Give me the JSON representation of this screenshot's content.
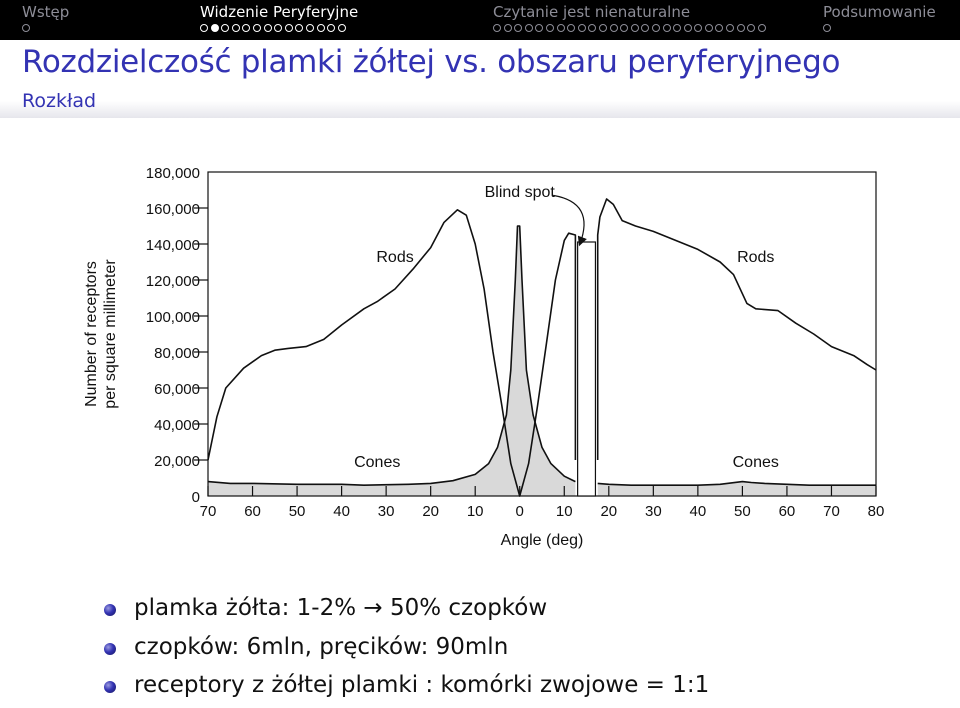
{
  "nav": {
    "sections": [
      {
        "label": "Wstęp",
        "dots": 1,
        "current": -1,
        "active": false
      },
      {
        "label": "Widzenie Peryferyjne",
        "dots": 14,
        "current": 1,
        "active": true
      },
      {
        "label": "Czytanie jest nienaturalne",
        "dots": 26,
        "current": -1,
        "active": false
      },
      {
        "label": "Podsumowanie",
        "dots": 1,
        "current": -1,
        "active": false
      }
    ]
  },
  "frame": {
    "title": "Rozdzielczość plamki żółtej vs. obszaru peryferyjnego",
    "subtitle": "Rozkład"
  },
  "chart_data": {
    "type": "line",
    "title": "",
    "xlabel": "Angle (deg)",
    "ylabel_lines": [
      "Number of receptors",
      "per square millimeter"
    ],
    "x_tick_labels": [
      "70",
      "60",
      "50",
      "40",
      "30",
      "20",
      "10",
      "0",
      "10",
      "20",
      "30",
      "40",
      "50",
      "60",
      "70",
      "80"
    ],
    "x_range": [
      -70,
      80
    ],
    "y_ticks": [
      0,
      20000,
      40000,
      60000,
      80000,
      100000,
      120000,
      140000,
      160000,
      180000
    ],
    "y_tick_labels": [
      "0",
      "20,000",
      "40,000",
      "60,000",
      "80,000",
      "100,000",
      "120,000",
      "140,000",
      "160,000",
      "180,000"
    ],
    "ylim": [
      0,
      180000
    ],
    "blind_spot_range": [
      13,
      17
    ],
    "grid": false,
    "annotations": {
      "blind_spot": "Blind spot"
    },
    "series": [
      {
        "name": "Rods",
        "label_at": [
          -28,
          130000
        ],
        "segments": [
          [
            [
              -70,
              20000
            ],
            [
              -68,
              44000
            ],
            [
              -66,
              60000
            ],
            [
              -62,
              71000
            ],
            [
              -58,
              78000
            ],
            [
              -55,
              81000
            ],
            [
              -52,
              82000
            ],
            [
              -48,
              83000
            ],
            [
              -44,
              87000
            ],
            [
              -40,
              95000
            ],
            [
              -35,
              104000
            ],
            [
              -32,
              108000
            ],
            [
              -28,
              115000
            ],
            [
              -24,
              126000
            ],
            [
              -20,
              138000
            ],
            [
              -17,
              152000
            ],
            [
              -14,
              159000
            ],
            [
              -12,
              156000
            ],
            [
              -10,
              140000
            ],
            [
              -8,
              115000
            ],
            [
              -6,
              80000
            ],
            [
              -4,
              50000
            ],
            [
              -2,
              18000
            ],
            [
              0,
              0
            ],
            [
              2,
              18000
            ],
            [
              4,
              50000
            ],
            [
              6,
              85000
            ],
            [
              8,
              120000
            ],
            [
              10,
              142000
            ],
            [
              11,
              146000
            ],
            [
              12.5,
              145000
            ],
            [
              12.5,
              20000
            ]
          ],
          [
            [
              17.5,
              20000
            ],
            [
              17.5,
              145000
            ],
            [
              18,
              155000
            ],
            [
              19.5,
              165000
            ],
            [
              21,
              162000
            ],
            [
              23,
              153000
            ],
            [
              26,
              150000
            ],
            [
              30,
              147000
            ],
            [
              35,
              142000
            ],
            [
              40,
              137000
            ],
            [
              45,
              130000
            ],
            [
              48,
              123000
            ],
            [
              51,
              107000
            ],
            [
              53,
              104000
            ],
            [
              58,
              103000
            ],
            [
              62,
              96000
            ],
            [
              66,
              90000
            ],
            [
              70,
              83000
            ],
            [
              75,
              78000
            ],
            [
              78,
              73000
            ],
            [
              80,
              70000
            ]
          ]
        ]
      },
      {
        "name": "Cones",
        "label_at": [
          -32,
          16000
        ],
        "fill": "#d9d9d9",
        "segments": [
          [
            [
              -70,
              8000
            ],
            [
              -65,
              7000
            ],
            [
              -60,
              7000
            ],
            [
              -50,
              6500
            ],
            [
              -40,
              6500
            ],
            [
              -35,
              6000
            ],
            [
              -25,
              6500
            ],
            [
              -20,
              7000
            ],
            [
              -15,
              8500
            ],
            [
              -10,
              12000
            ],
            [
              -7,
              18000
            ],
            [
              -5,
              27000
            ],
            [
              -3,
              45000
            ],
            [
              -2,
              70000
            ],
            [
              -1,
              120000
            ],
            [
              -0.5,
              150000
            ],
            [
              0,
              150000
            ],
            [
              0.5,
              120000
            ],
            [
              1.5,
              70000
            ],
            [
              3,
              45000
            ],
            [
              5,
              27000
            ],
            [
              7,
              18000
            ],
            [
              10,
              11000
            ],
            [
              12.5,
              8000
            ]
          ],
          [
            [
              17.5,
              7000
            ],
            [
              20,
              6500
            ],
            [
              25,
              6000
            ],
            [
              30,
              6000
            ],
            [
              40,
              6000
            ],
            [
              45,
              6500
            ],
            [
              50,
              8000
            ],
            [
              52,
              7500
            ],
            [
              55,
              7000
            ],
            [
              65,
              6000
            ],
            [
              75,
              6000
            ],
            [
              80,
              6000
            ]
          ]
        ]
      }
    ]
  },
  "bullets": [
    "plamka żółta: 1-2% → 50% czopków",
    "czopków: 6mln, pręcików: 90mln",
    "receptory z żółtej plamki : komórki zwojowe = 1:1"
  ]
}
